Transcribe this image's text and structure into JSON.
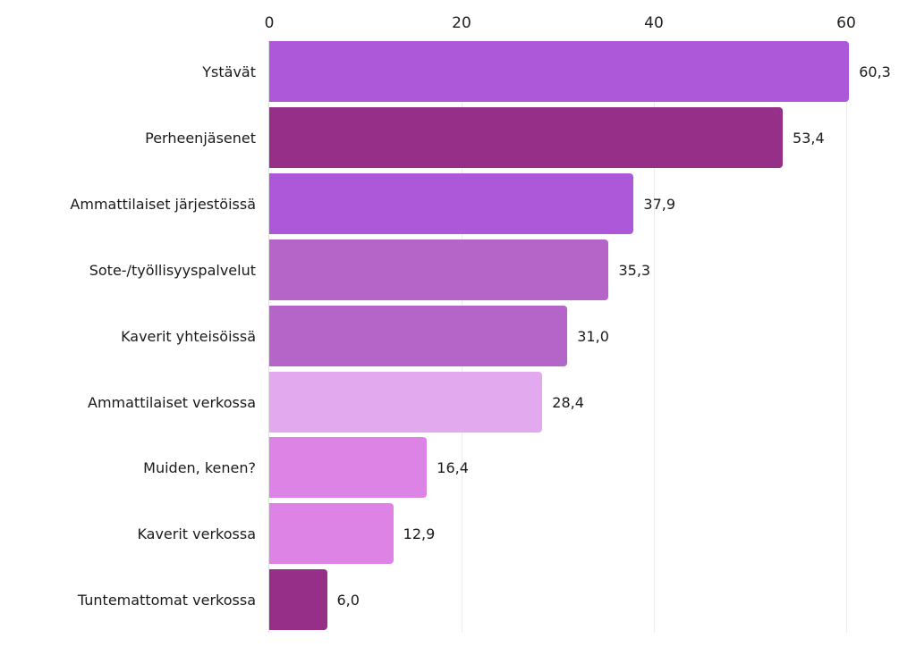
{
  "chart_data": {
    "type": "bar",
    "orientation": "horizontal",
    "title": "",
    "xlabel": "",
    "ylabel": "",
    "xlim": [
      0,
      62
    ],
    "x_ticks": [
      "0",
      "20",
      "40",
      "60"
    ],
    "grid": true,
    "legend": null,
    "categories": [
      "Ystävät",
      "Perheenjäsenet",
      "Ammattilaiset järjestöissä",
      "Sote-/työllisyyspalvelut",
      "Kaverit yhteisöissä",
      "Ammattilaiset verkossa",
      "Muiden, kenen?",
      "Kaverit verkossa",
      "Tuntemattomat verkossa"
    ],
    "values": [
      60.3,
      53.4,
      37.9,
      35.3,
      31.0,
      28.4,
      16.4,
      12.9,
      6.0
    ],
    "value_labels": [
      "60,3",
      "53,4",
      "37,9",
      "35,3",
      "31,0",
      "28,4",
      "16,4",
      "12,9",
      "6,0"
    ],
    "colors": [
      "#ad58d9",
      "#962f87",
      "#ad58d9",
      "#b564c8",
      "#b564c8",
      "#e2a9ee",
      "#de83e6",
      "#de83e6",
      "#962f87"
    ]
  }
}
